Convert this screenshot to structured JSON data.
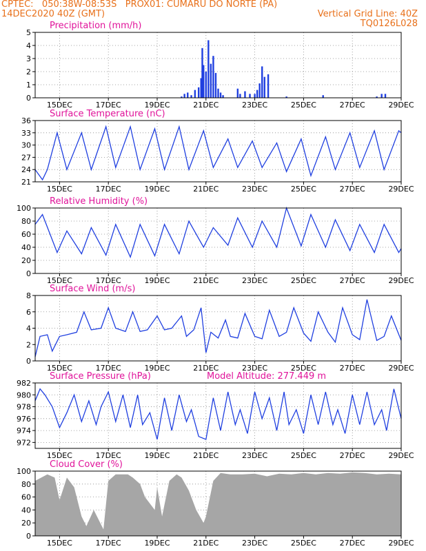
{
  "header": {
    "line1_left": "CPTEC:   050:38W-08:53S   PROX01: CUMARU DO NORTE (PA)",
    "line2_left": "14DEC2020 40Z (GMT)",
    "line2_right": "Vertical Grid Line: 40Z",
    "line3_right": "TQ0126L028"
  },
  "colors": {
    "header": "#e8701a",
    "panel_title": "#e0139a",
    "line": "#1f3fe0",
    "cloud": "#a6a6a6"
  },
  "x_axis": {
    "domain_days": [
      14.0,
      29.0
    ],
    "ticks": [
      15,
      17,
      19,
      21,
      23,
      25,
      27,
      29
    ],
    "tick_labels": [
      "15DEC",
      "17DEC",
      "19DEC",
      "21DEC",
      "23DEC",
      "25DEC",
      "27DEC",
      "29DEC"
    ]
  },
  "panels": {
    "precip": {
      "title": "Precipitation (mm/h)",
      "yticks": [
        "0",
        "1",
        "2",
        "3",
        "4",
        "5"
      ]
    },
    "temp": {
      "title": "Surface Temperature (nC)",
      "yticks": [
        "21",
        "24",
        "27",
        "30",
        "33",
        "36"
      ]
    },
    "rh": {
      "title": "Relative Humidity (%)",
      "yticks": [
        "0",
        "20",
        "40",
        "60",
        "80",
        "100"
      ]
    },
    "wind": {
      "title": "Surface Wind (m/s)",
      "yticks": [
        "0",
        "2",
        "4",
        "6",
        "8"
      ]
    },
    "press": {
      "title": "Surface Pressure (hPa)",
      "subtitle": "Model Altitude: 277.449 m",
      "yticks": [
        "972",
        "974",
        "976",
        "978",
        "980",
        "982"
      ]
    },
    "cloud": {
      "title": "Cloud Cover (%)",
      "yticks": [
        "0",
        "20",
        "40",
        "60",
        "80",
        "100"
      ]
    }
  },
  "chart_data": [
    {
      "type": "bar",
      "title": "Precipitation (mm/h)",
      "ylim": [
        0,
        5
      ],
      "x_unit": "day of December 2020",
      "x": [
        20.0,
        20.12,
        20.25,
        20.4,
        20.55,
        20.7,
        20.8,
        20.85,
        20.9,
        21.0,
        21.1,
        21.2,
        21.3,
        21.4,
        21.5,
        21.6,
        21.7,
        22.3,
        22.4,
        22.6,
        22.8,
        23.0,
        23.1,
        23.2,
        23.3,
        23.4,
        23.55,
        24.3,
        25.8,
        28.0,
        28.2,
        28.35
      ],
      "values": [
        0.1,
        0.3,
        0.4,
        0.2,
        0.6,
        0.8,
        1.5,
        3.8,
        2.5,
        2.0,
        4.4,
        2.6,
        3.2,
        1.9,
        0.7,
        0.4,
        0.2,
        0.7,
        0.3,
        0.5,
        0.3,
        0.3,
        0.6,
        1.1,
        2.4,
        1.6,
        1.8,
        0.1,
        0.2,
        0.1,
        0.3,
        0.3
      ]
    },
    {
      "type": "line",
      "title": "Surface Temperature (nC)",
      "ylim": [
        21,
        36
      ],
      "x_unit": "day of December 2020",
      "x": [
        14.0,
        14.3,
        14.5,
        14.9,
        15.3,
        15.9,
        16.3,
        16.9,
        17.3,
        17.9,
        18.3,
        18.9,
        19.3,
        19.9,
        20.3,
        20.9,
        21.3,
        21.9,
        22.3,
        22.9,
        23.3,
        23.9,
        24.3,
        24.9,
        25.3,
        25.9,
        26.3,
        26.9,
        27.3,
        27.9,
        28.3,
        28.9,
        29.0
      ],
      "y": [
        24.0,
        21.5,
        24.0,
        33.0,
        24.0,
        33.0,
        24.0,
        34.5,
        24.5,
        34.5,
        24.0,
        34.0,
        24.0,
        34.5,
        24.0,
        33.5,
        24.5,
        31.5,
        24.5,
        31.0,
        24.5,
        30.5,
        23.5,
        31.5,
        22.5,
        32.0,
        24.0,
        33.0,
        24.5,
        33.5,
        24.0,
        33.5,
        33.0
      ]
    },
    {
      "type": "line",
      "title": "Relative Humidity (%)",
      "ylim": [
        0,
        100
      ],
      "x_unit": "day of December 2020",
      "x": [
        14.0,
        14.3,
        14.9,
        15.3,
        15.9,
        16.3,
        16.9,
        17.3,
        17.9,
        18.3,
        18.9,
        19.3,
        19.9,
        20.3,
        20.9,
        21.3,
        21.9,
        22.3,
        22.9,
        23.3,
        23.9,
        24.3,
        24.9,
        25.3,
        25.9,
        26.3,
        26.9,
        27.3,
        27.9,
        28.3,
        28.9,
        29.0
      ],
      "y": [
        75,
        90,
        32,
        65,
        30,
        70,
        28,
        75,
        25,
        75,
        27,
        75,
        30,
        80,
        40,
        70,
        43,
        85,
        40,
        80,
        40,
        100,
        42,
        90,
        40,
        82,
        35,
        75,
        32,
        75,
        32,
        38
      ]
    },
    {
      "type": "line",
      "title": "Surface Wind (m/s)",
      "ylim": [
        0,
        8
      ],
      "x_unit": "day of December 2020",
      "x": [
        14.0,
        14.2,
        14.5,
        14.7,
        15.0,
        15.3,
        15.7,
        16.0,
        16.3,
        16.7,
        17.0,
        17.3,
        17.7,
        18.0,
        18.3,
        18.6,
        19.0,
        19.3,
        19.6,
        20.0,
        20.2,
        20.5,
        20.8,
        21.0,
        21.2,
        21.5,
        21.8,
        22.0,
        22.3,
        22.6,
        23.0,
        23.3,
        23.6,
        24.0,
        24.3,
        24.6,
        25.0,
        25.3,
        25.6,
        26.0,
        26.3,
        26.6,
        27.0,
        27.3,
        27.6,
        28.0,
        28.3,
        28.6,
        29.0
      ],
      "y": [
        0.5,
        3.0,
        3.2,
        1.2,
        3.0,
        3.2,
        3.5,
        6.0,
        3.8,
        4.0,
        6.5,
        4.0,
        3.6,
        6.0,
        3.6,
        3.8,
        5.5,
        3.8,
        4.0,
        5.5,
        3.0,
        3.8,
        6.5,
        1.0,
        3.5,
        2.8,
        5.0,
        3.0,
        2.8,
        5.8,
        3.0,
        2.7,
        6.2,
        3.0,
        3.5,
        6.5,
        3.4,
        2.4,
        6.0,
        3.5,
        2.3,
        6.5,
        3.2,
        2.6,
        7.5,
        2.5,
        3.0,
        5.5,
        2.5
      ]
    },
    {
      "type": "line",
      "title": "Surface Pressure (hPa)",
      "ylim": [
        971,
        982
      ],
      "x_unit": "day of December 2020",
      "x": [
        14.0,
        14.2,
        14.4,
        14.7,
        15.0,
        15.3,
        15.6,
        15.9,
        16.2,
        16.5,
        16.7,
        17.0,
        17.3,
        17.6,
        17.9,
        18.2,
        18.4,
        18.7,
        19.0,
        19.3,
        19.6,
        19.9,
        20.2,
        20.4,
        20.7,
        21.0,
        21.3,
        21.6,
        21.9,
        22.2,
        22.4,
        22.7,
        23.0,
        23.3,
        23.6,
        23.9,
        24.2,
        24.4,
        24.7,
        25.0,
        25.3,
        25.6,
        25.9,
        26.2,
        26.4,
        26.7,
        27.0,
        27.3,
        27.6,
        27.9,
        28.2,
        28.4,
        28.7,
        29.0
      ],
      "y": [
        979,
        981,
        980,
        978,
        974.5,
        977,
        980,
        975.5,
        979,
        975,
        978,
        980.5,
        975.5,
        980,
        974.5,
        980,
        975,
        977,
        972.5,
        979.5,
        974,
        980,
        975.5,
        977.5,
        973,
        972.5,
        979.5,
        974,
        980.5,
        975,
        977.5,
        973.5,
        980.5,
        976,
        979.5,
        974,
        980.5,
        975,
        977.5,
        973.5,
        980,
        975,
        980.5,
        975,
        977.5,
        973.5,
        980,
        975,
        980.5,
        975,
        977.5,
        974,
        981,
        976
      ]
    },
    {
      "type": "area",
      "title": "Cloud Cover (%)",
      "ylim": [
        0,
        100
      ],
      "x_unit": "day of December 2020",
      "x": [
        14.0,
        14.5,
        14.8,
        15.0,
        15.3,
        15.6,
        15.9,
        16.1,
        16.4,
        16.8,
        17.0,
        17.3,
        17.8,
        18.0,
        18.3,
        18.5,
        18.9,
        19.0,
        19.2,
        19.5,
        19.8,
        20.0,
        20.3,
        20.6,
        20.9,
        21.0,
        21.3,
        21.6,
        22.0,
        22.5,
        23.0,
        23.5,
        24.0,
        24.5,
        25.0,
        25.5,
        26.0,
        26.5,
        27.0,
        27.5,
        28.0,
        28.5,
        29.0
      ],
      "y": [
        85,
        95,
        90,
        55,
        90,
        75,
        30,
        15,
        40,
        10,
        85,
        95,
        95,
        90,
        80,
        60,
        40,
        75,
        30,
        85,
        95,
        90,
        70,
        40,
        20,
        30,
        85,
        97,
        95,
        95,
        96,
        92,
        96,
        95,
        97,
        95,
        97,
        96,
        98,
        97,
        95,
        96,
        95
      ]
    }
  ]
}
